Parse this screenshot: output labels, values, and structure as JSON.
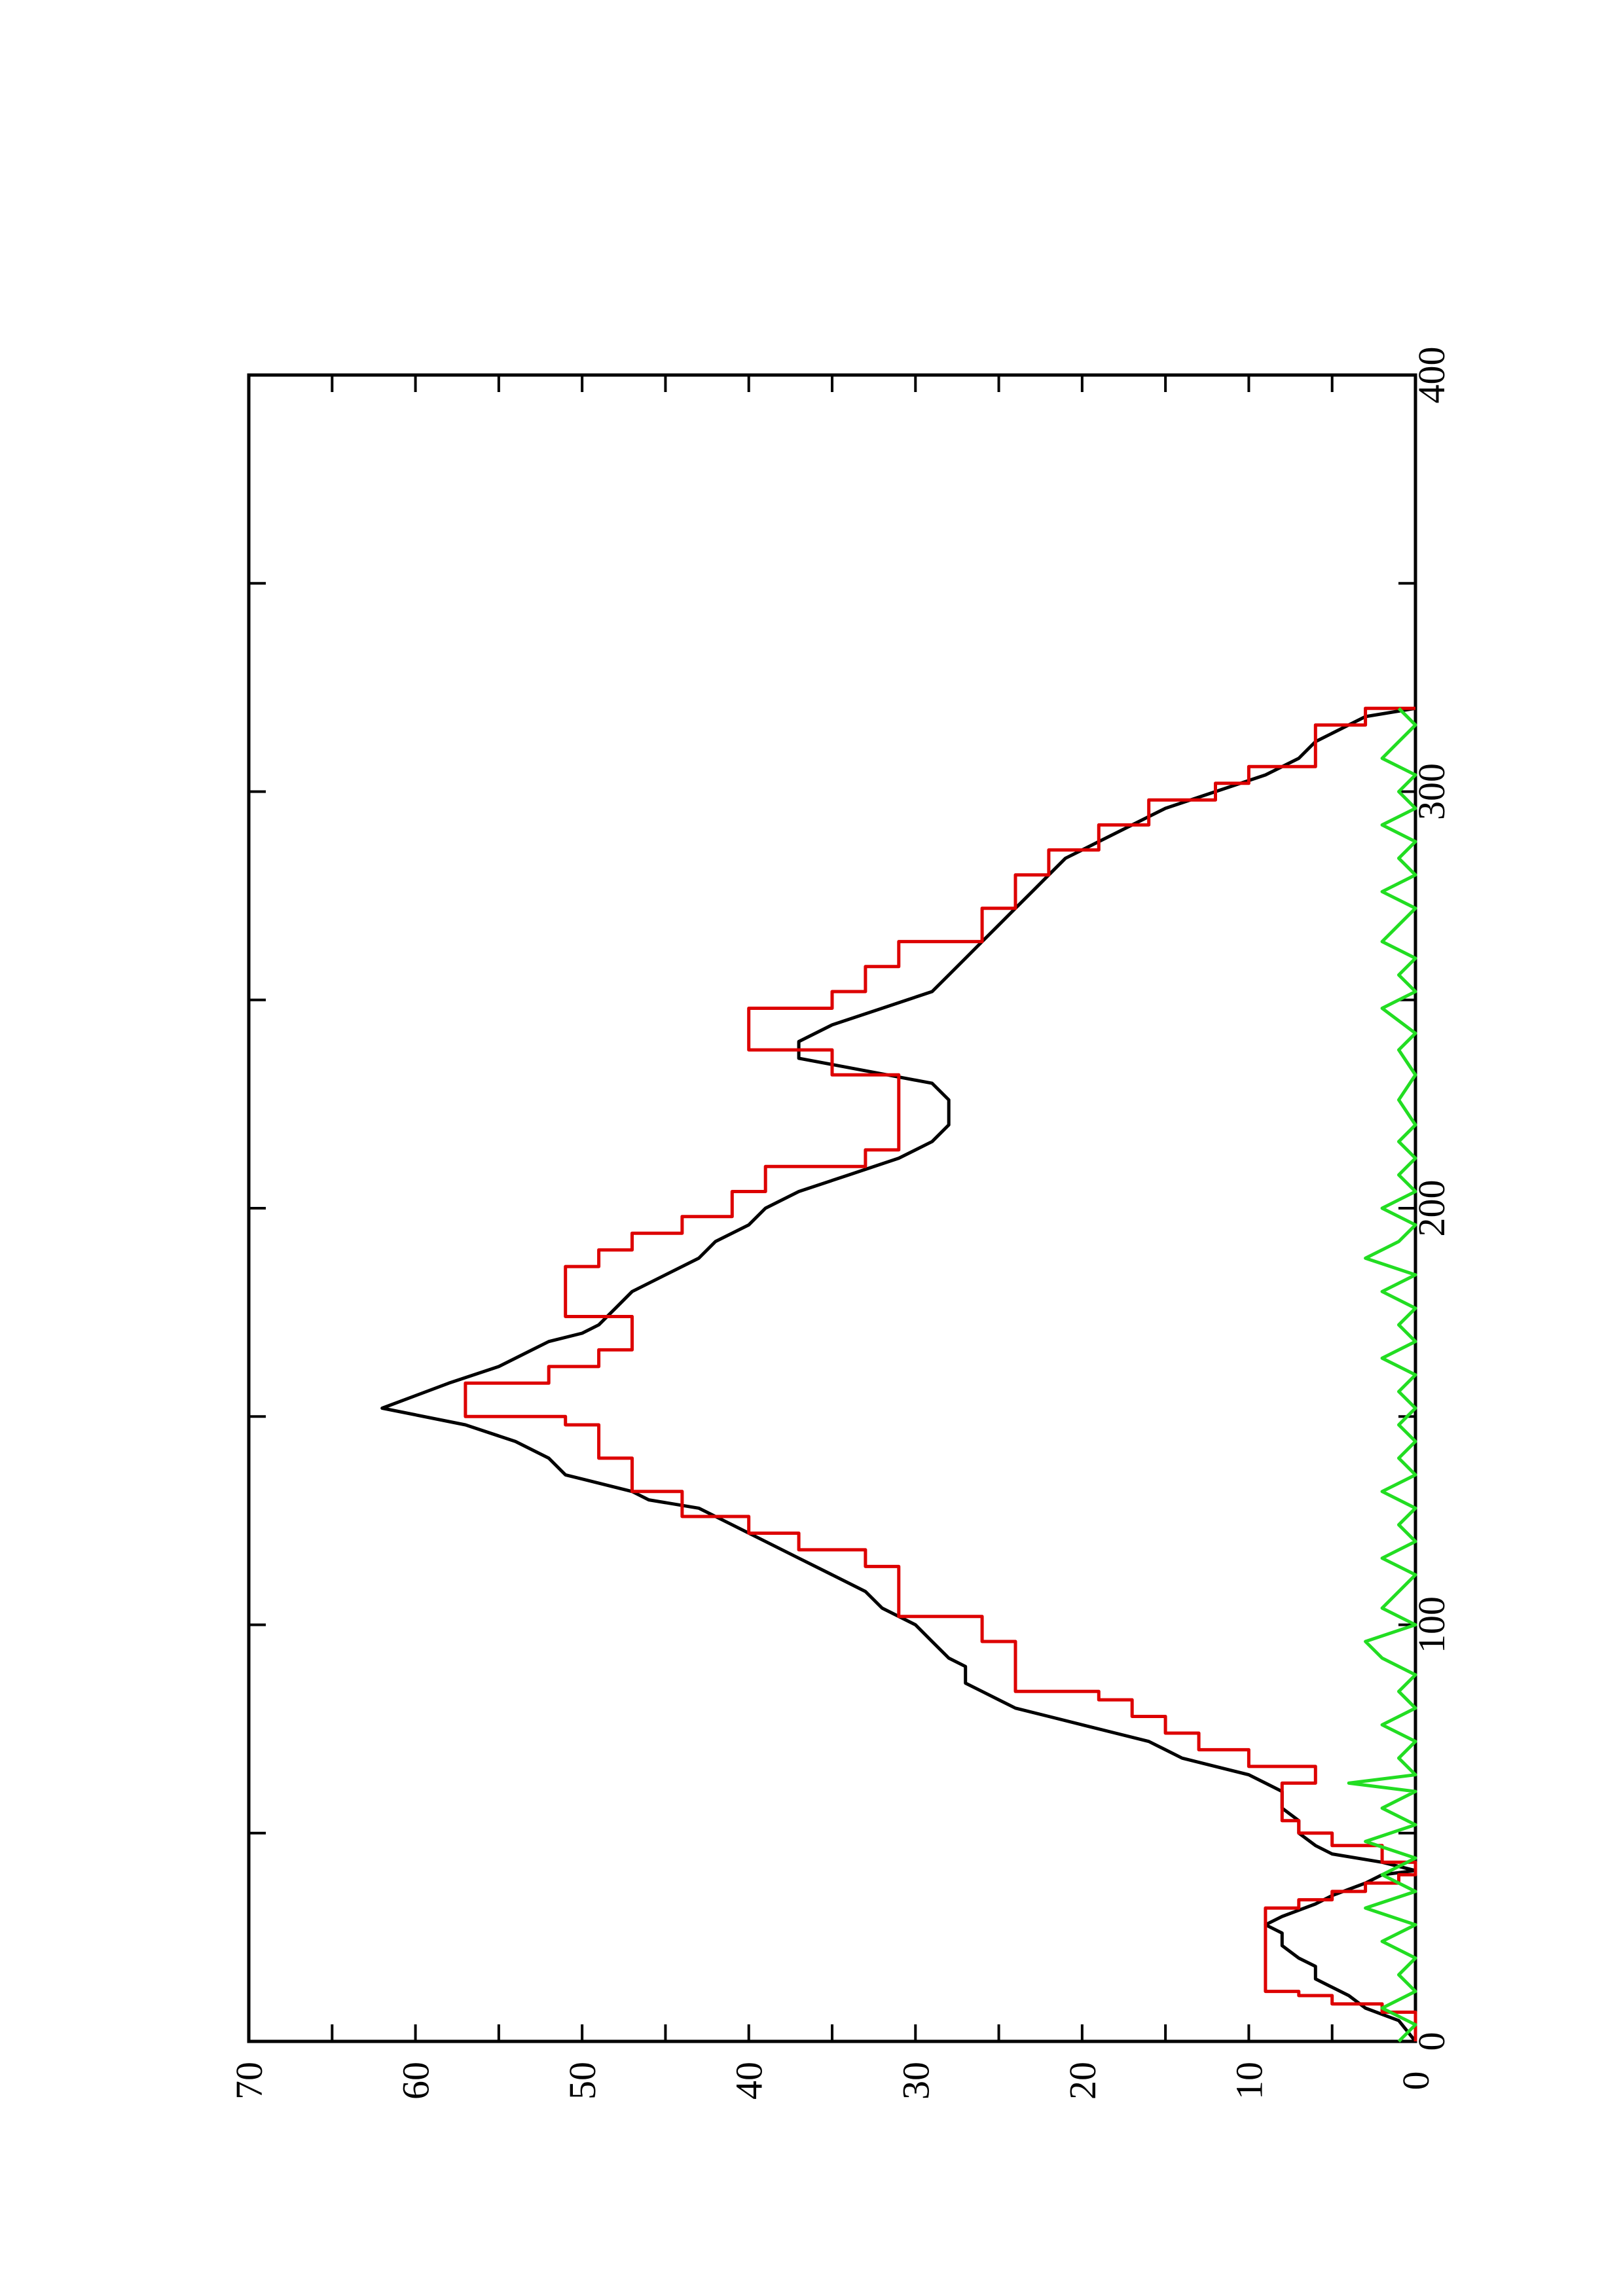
{
  "chart_data": {
    "type": "line",
    "orientation": "rotated-90-ccw",
    "title": "",
    "xlabel": "",
    "ylabel": "",
    "xlim": [
      0,
      400
    ],
    "ylim": [
      0,
      70
    ],
    "x_ticks": [
      "0",
      "100",
      "200",
      "300",
      "400"
    ],
    "y_ticks": [
      "0",
      "10",
      "20",
      "30",
      "40",
      "50",
      "60",
      "70"
    ],
    "grid": false,
    "legend": "none",
    "series": [
      {
        "color": "#000000",
        "style": "line",
        "points": [
          [
            0,
            0
          ],
          [
            5,
            1
          ],
          [
            8,
            3
          ],
          [
            11,
            4
          ],
          [
            13,
            5
          ],
          [
            15,
            6
          ],
          [
            18,
            6
          ],
          [
            20,
            7
          ],
          [
            23,
            8
          ],
          [
            26,
            8
          ],
          [
            28,
            9
          ],
          [
            30,
            8
          ],
          [
            33,
            6
          ],
          [
            35,
            5
          ],
          [
            38,
            3
          ],
          [
            40,
            2
          ],
          [
            41,
            0
          ],
          [
            43,
            2
          ],
          [
            45,
            5
          ],
          [
            47,
            6
          ],
          [
            50,
            7
          ],
          [
            53,
            7
          ],
          [
            56,
            8
          ],
          [
            58,
            8
          ],
          [
            60,
            8
          ],
          [
            62,
            9
          ],
          [
            64,
            10
          ],
          [
            66,
            12
          ],
          [
            68,
            14
          ],
          [
            70,
            15
          ],
          [
            72,
            16
          ],
          [
            74,
            18
          ],
          [
            76,
            20
          ],
          [
            78,
            22
          ],
          [
            80,
            24
          ],
          [
            84,
            26
          ],
          [
            86,
            27
          ],
          [
            90,
            27
          ],
          [
            92,
            28
          ],
          [
            96,
            29
          ],
          [
            100,
            30
          ],
          [
            104,
            32
          ],
          [
            108,
            33
          ],
          [
            112,
            35
          ],
          [
            116,
            37
          ],
          [
            120,
            39
          ],
          [
            124,
            41
          ],
          [
            128,
            43
          ],
          [
            130,
            46
          ],
          [
            132,
            47
          ],
          [
            134,
            49
          ],
          [
            136,
            51
          ],
          [
            140,
            52
          ],
          [
            144,
            54
          ],
          [
            148,
            57
          ],
          [
            152,
            62
          ],
          [
            158,
            58
          ],
          [
            162,
            55
          ],
          [
            166,
            53
          ],
          [
            168,
            52
          ],
          [
            170,
            50
          ],
          [
            172,
            49
          ],
          [
            176,
            48
          ],
          [
            180,
            47
          ],
          [
            184,
            45
          ],
          [
            188,
            43
          ],
          [
            192,
            42
          ],
          [
            196,
            40
          ],
          [
            200,
            39
          ],
          [
            204,
            37
          ],
          [
            208,
            34
          ],
          [
            212,
            31
          ],
          [
            216,
            29
          ],
          [
            220,
            28
          ],
          [
            226,
            28
          ],
          [
            230,
            29
          ],
          [
            236,
            37
          ],
          [
            240,
            37
          ],
          [
            244,
            35
          ],
          [
            248,
            32
          ],
          [
            252,
            29
          ],
          [
            256,
            28
          ],
          [
            260,
            27
          ],
          [
            264,
            26
          ],
          [
            268,
            25
          ],
          [
            272,
            24
          ],
          [
            276,
            23
          ],
          [
            280,
            22
          ],
          [
            284,
            21
          ],
          [
            288,
            19
          ],
          [
            292,
            17
          ],
          [
            296,
            15
          ],
          [
            300,
            12
          ],
          [
            304,
            9
          ],
          [
            308,
            7
          ],
          [
            312,
            6
          ],
          [
            314,
            5
          ],
          [
            318,
            3
          ],
          [
            320,
            0
          ]
        ]
      },
      {
        "color": "#dd0000",
        "style": "step",
        "points": [
          [
            0,
            0
          ],
          [
            5,
            0
          ],
          [
            7,
            2
          ],
          [
            9,
            5
          ],
          [
            11,
            7
          ],
          [
            12,
            9
          ],
          [
            20,
            9
          ],
          [
            30,
            9
          ],
          [
            32,
            7
          ],
          [
            34,
            5
          ],
          [
            36,
            3
          ],
          [
            38,
            1
          ],
          [
            40,
            0
          ],
          [
            43,
            2
          ],
          [
            47,
            5
          ],
          [
            50,
            7
          ],
          [
            53,
            8
          ],
          [
            58,
            8
          ],
          [
            62,
            6
          ],
          [
            66,
            10
          ],
          [
            70,
            13
          ],
          [
            74,
            15
          ],
          [
            78,
            17
          ],
          [
            82,
            19
          ],
          [
            84,
            24
          ],
          [
            96,
            26
          ],
          [
            102,
            31
          ],
          [
            110,
            31
          ],
          [
            114,
            33
          ],
          [
            118,
            37
          ],
          [
            122,
            40
          ],
          [
            126,
            44
          ],
          [
            132,
            47
          ],
          [
            140,
            49
          ],
          [
            148,
            51
          ],
          [
            150,
            57
          ],
          [
            158,
            52
          ],
          [
            162,
            49
          ],
          [
            166,
            47
          ],
          [
            170,
            47
          ],
          [
            174,
            51
          ],
          [
            182,
            51
          ],
          [
            186,
            49
          ],
          [
            190,
            47
          ],
          [
            194,
            44
          ],
          [
            198,
            41
          ],
          [
            204,
            39
          ],
          [
            210,
            33
          ],
          [
            214,
            31
          ],
          [
            226,
            31
          ],
          [
            232,
            35
          ],
          [
            238,
            40
          ],
          [
            242,
            40
          ],
          [
            248,
            35
          ],
          [
            252,
            33
          ],
          [
            258,
            31
          ],
          [
            264,
            26
          ],
          [
            272,
            24
          ],
          [
            280,
            22
          ],
          [
            286,
            19
          ],
          [
            292,
            16
          ],
          [
            298,
            12
          ],
          [
            302,
            10
          ],
          [
            306,
            6
          ],
          [
            312,
            6
          ],
          [
            316,
            3
          ],
          [
            320,
            0
          ]
        ]
      },
      {
        "color": "#22dd22",
        "style": "line",
        "points": [
          [
            0,
            1
          ],
          [
            4,
            0
          ],
          [
            8,
            2
          ],
          [
            12,
            0
          ],
          [
            16,
            1
          ],
          [
            20,
            0
          ],
          [
            24,
            2
          ],
          [
            28,
            0
          ],
          [
            32,
            3
          ],
          [
            36,
            0
          ],
          [
            40,
            2
          ],
          [
            44,
            0
          ],
          [
            48,
            3
          ],
          [
            52,
            0
          ],
          [
            56,
            2
          ],
          [
            60,
            0
          ],
          [
            62,
            4
          ],
          [
            64,
            0
          ],
          [
            68,
            1
          ],
          [
            72,
            0
          ],
          [
            76,
            2
          ],
          [
            80,
            0
          ],
          [
            84,
            1
          ],
          [
            88,
            0
          ],
          [
            92,
            2
          ],
          [
            96,
            3
          ],
          [
            100,
            0
          ],
          [
            104,
            2
          ],
          [
            108,
            1
          ],
          [
            112,
            0
          ],
          [
            116,
            2
          ],
          [
            120,
            0
          ],
          [
            124,
            1
          ],
          [
            128,
            0
          ],
          [
            132,
            2
          ],
          [
            136,
            0
          ],
          [
            140,
            1
          ],
          [
            144,
            0
          ],
          [
            148,
            1
          ],
          [
            152,
            0
          ],
          [
            156,
            1
          ],
          [
            160,
            0
          ],
          [
            164,
            2
          ],
          [
            168,
            0
          ],
          [
            172,
            1
          ],
          [
            176,
            0
          ],
          [
            180,
            2
          ],
          [
            184,
            0
          ],
          [
            188,
            3
          ],
          [
            192,
            1
          ],
          [
            196,
            0
          ],
          [
            200,
            2
          ],
          [
            204,
            0
          ],
          [
            208,
            1
          ],
          [
            212,
            0
          ],
          [
            216,
            1
          ],
          [
            220,
            0
          ],
          [
            226,
            1
          ],
          [
            232,
            0
          ],
          [
            238,
            1
          ],
          [
            242,
            0
          ],
          [
            248,
            2
          ],
          [
            252,
            0
          ],
          [
            256,
            1
          ],
          [
            260,
            0
          ],
          [
            264,
            2
          ],
          [
            268,
            1
          ],
          [
            272,
            0
          ],
          [
            276,
            2
          ],
          [
            280,
            0
          ],
          [
            284,
            1
          ],
          [
            288,
            0
          ],
          [
            292,
            2
          ],
          [
            296,
            0
          ],
          [
            300,
            1
          ],
          [
            304,
            0
          ],
          [
            308,
            2
          ],
          [
            312,
            1
          ],
          [
            316,
            0
          ],
          [
            320,
            1
          ]
        ]
      }
    ]
  }
}
